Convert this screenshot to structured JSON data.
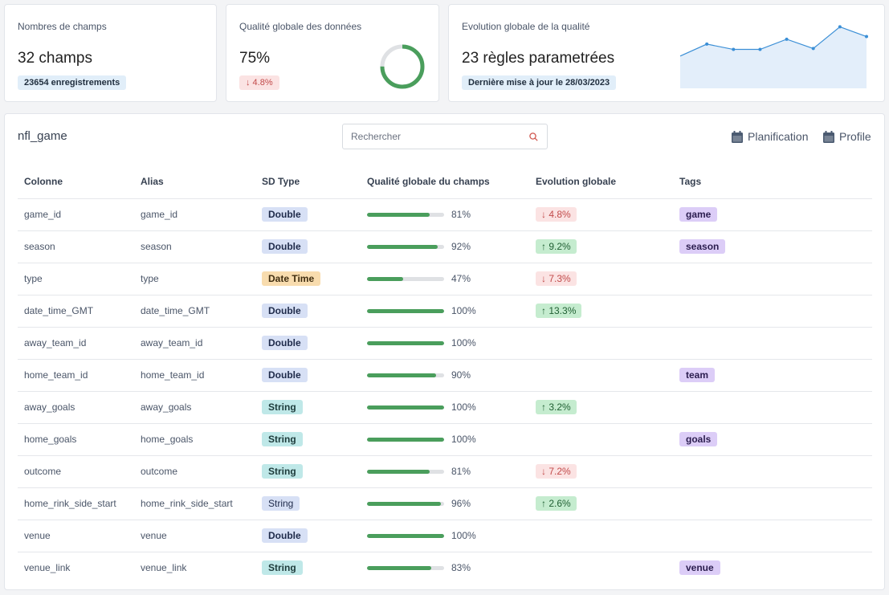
{
  "cards": {
    "fields": {
      "title": "Nombres de champs",
      "value": "32 champs",
      "badge": "23654 enregistrements"
    },
    "quality": {
      "title": "Qualité globale des données",
      "value": "75%",
      "trend": "↓ 4.8%",
      "gauge_fraction": 0.75,
      "gauge_color": "#4a9e5c"
    },
    "evolution": {
      "title": "Evolution globale de la qualité",
      "value": "23 règles parametrées",
      "badge": "Dernière mise à jour le 28/03/2023",
      "sparkline": [
        0.62,
        0.89,
        0.77,
        0.77,
        1.0,
        0.79,
        1.28,
        1.06
      ],
      "color": "#3b8fd6"
    }
  },
  "panel": {
    "title": "nfl_game",
    "search_placeholder": "Rechercher",
    "actions": {
      "planification": "Planification",
      "profile": "Profile"
    }
  },
  "table": {
    "headers": {
      "colonne": "Colonne",
      "alias": "Alias",
      "type": "SD Type",
      "qualite": "Qualité globale du champs",
      "evolution": "Evolution globale",
      "tags": "Tags"
    },
    "rows": [
      {
        "col": "game_id",
        "alias": "game_id",
        "type": "Double",
        "typeClass": "t-double",
        "q": 81,
        "qlabel": "81%",
        "evo": "↓ 4.8%",
        "evoDir": "down",
        "tag": "game"
      },
      {
        "col": "season",
        "alias": "season",
        "type": "Double",
        "typeClass": "t-double",
        "q": 92,
        "qlabel": "92%",
        "evo": "↑ 9.2%",
        "evoDir": "up",
        "tag": "season"
      },
      {
        "col": "type",
        "alias": "type",
        "type": "Date Time",
        "typeClass": "t-date",
        "q": 47,
        "qlabel": "47%",
        "evo": "↓ 7.3%",
        "evoDir": "down",
        "tag": ""
      },
      {
        "col": "date_time_GMT",
        "alias": "date_time_GMT",
        "type": "Double",
        "typeClass": "t-double",
        "q": 100,
        "qlabel": "100%",
        "evo": "↑ 13.3%",
        "evoDir": "up",
        "tag": ""
      },
      {
        "col": "away_team_id",
        "alias": "away_team_id",
        "type": "Double",
        "typeClass": "t-double",
        "q": 100,
        "qlabel": "100%",
        "evo": "",
        "evoDir": "",
        "tag": ""
      },
      {
        "col": "home_team_id",
        "alias": "home_team_id",
        "type": "Double",
        "typeClass": "t-double",
        "q": 90,
        "qlabel": "90%",
        "evo": "",
        "evoDir": "",
        "tag": "team"
      },
      {
        "col": "away_goals",
        "alias": "away_goals",
        "type": "String",
        "typeClass": "t-string-b",
        "q": 100,
        "qlabel": "100%",
        "evo": "↑ 3.2%",
        "evoDir": "up",
        "tag": ""
      },
      {
        "col": "home_goals",
        "alias": "home_goals",
        "type": "String",
        "typeClass": "t-string-b",
        "q": 100,
        "qlabel": "100%",
        "evo": "",
        "evoDir": "",
        "tag": "goals"
      },
      {
        "col": "outcome",
        "alias": "outcome",
        "type": "String",
        "typeClass": "t-string-b",
        "q": 81,
        "qlabel": "81%",
        "evo": "↓ 7.2%",
        "evoDir": "down",
        "tag": ""
      },
      {
        "col": "home_rink_side_start",
        "alias": "home_rink_side_start",
        "type": "String",
        "typeClass": "t-string-n",
        "q": 96,
        "qlabel": "96%",
        "evo": "↑ 2.6%",
        "evoDir": "up",
        "tag": ""
      },
      {
        "col": "venue",
        "alias": "venue",
        "type": "Double",
        "typeClass": "t-double",
        "q": 100,
        "qlabel": "100%",
        "evo": "",
        "evoDir": "",
        "tag": ""
      },
      {
        "col": "venue_link",
        "alias": "venue_link",
        "type": "String",
        "typeClass": "t-string-b",
        "q": 83,
        "qlabel": "83%",
        "evo": "",
        "evoDir": "",
        "tag": "venue"
      }
    ]
  }
}
